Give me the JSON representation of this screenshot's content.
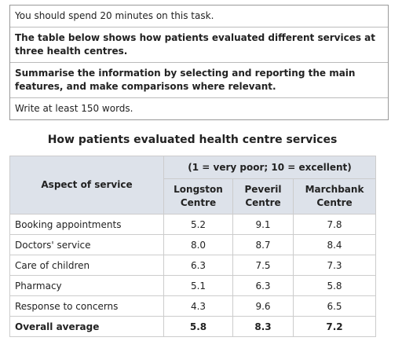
{
  "task": {
    "lines": [
      "You should spend 20 minutes on this task.",
      "The table below shows how patients evaluated different services at three health centres.",
      "Summarise the information by selecting and reporting the main features, and make comparisons where relevant.",
      "Write at least 150 words."
    ]
  },
  "table": {
    "title": "How patients evaluated health centre services",
    "scale_note": "(1 = very poor; 10 = excellent)",
    "columns": [
      "Aspect of service",
      "Longston Centre",
      "Peveril Centre",
      "Marchbank Centre"
    ],
    "rows": [
      [
        "Booking appointments",
        "5.2",
        "9.1",
        "7.8"
      ],
      [
        "Doctors' service",
        "8.0",
        "8.7",
        "8.4"
      ],
      [
        "Care of children",
        "6.3",
        "7.5",
        "7.3"
      ],
      [
        "Pharmacy",
        "5.1",
        "6.3",
        "5.8"
      ],
      [
        "Response to concerns",
        "4.3",
        "9.6",
        "6.5"
      ],
      [
        "Overall average",
        "5.8",
        "8.3",
        "7.2"
      ]
    ]
  }
}
